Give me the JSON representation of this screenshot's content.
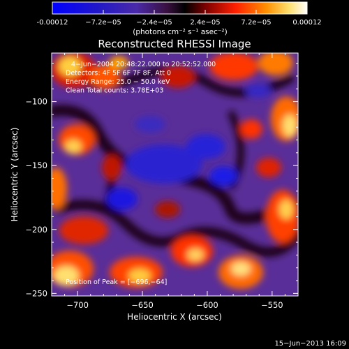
{
  "colorbar": {
    "tick_labels": [
      "-0.00012",
      "−7.2e−05",
      "−2.4e−05",
      "2.4e−05",
      "7.2e−05",
      "0.00012"
    ],
    "unit_label": "(photons cm⁻² s⁻¹ asec⁻²)",
    "colors": [
      "#0000ff",
      "#2a1a9a",
      "#5a2aa0",
      "#6a0000",
      "#ff2200",
      "#ff8800",
      "#ffee88",
      "#ffffff"
    ]
  },
  "plot": {
    "title": "Reconstructed RHESSI Image",
    "xlabel": "Heliocentric X (arcsec)",
    "ylabel": "Heliocentric Y (arcsec)",
    "xticks": [
      "−700",
      "−650",
      "−600",
      "−550"
    ],
    "yticks": [
      "−100",
      "−150",
      "−200",
      "−250"
    ],
    "info_lines": [
      "4−Jun−2004 20:48:22.000 to 20:52:52.000",
      "Detectors: 4F 5F 6F 7F 8F, Att 0",
      "Energy Range: 25.0 − 50.0 keV",
      "Clean    Total counts: 3.78E+03"
    ],
    "peak_label": "Position of Peak = [−696,−64]"
  },
  "footer": {
    "timestamp": "15−Jun−2013 16:09"
  }
}
